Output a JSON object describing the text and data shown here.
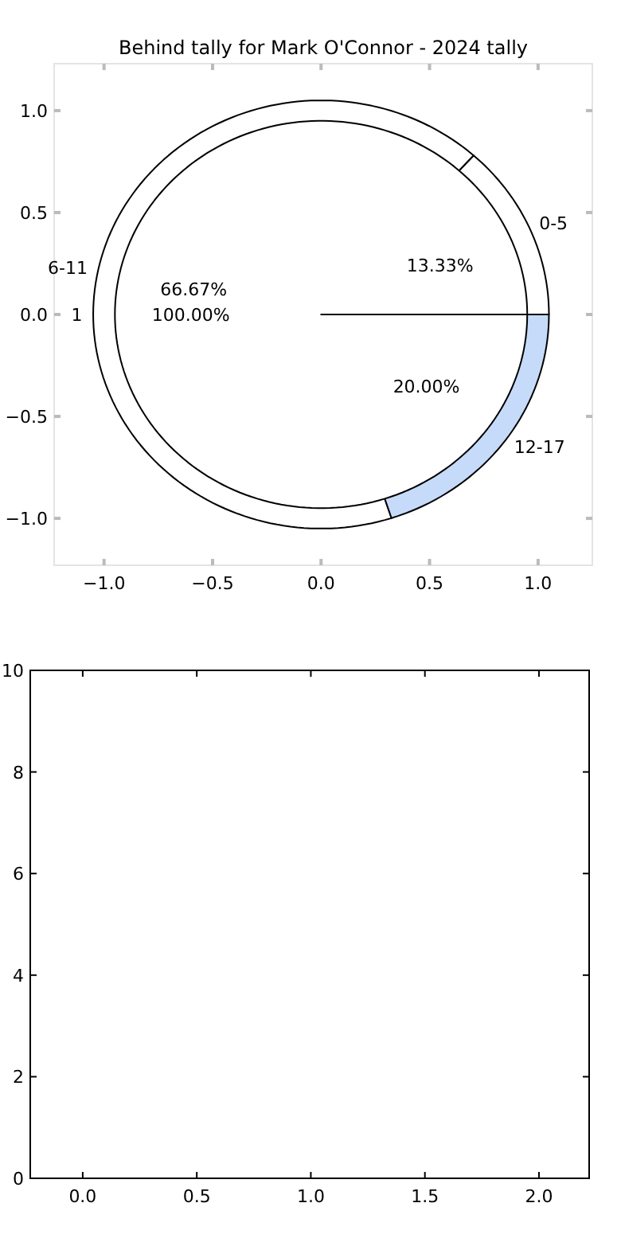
{
  "chart_data": [
    {
      "type": "scatter",
      "title": "Behind tally for Mark O'Connor - 2024 tally",
      "xlim": [
        -1.23,
        1.25
      ],
      "ylim": [
        -1.23,
        1.23
      ],
      "xticks": [
        {
          "value": -1,
          "label": "−1.0"
        },
        {
          "value": -0.5,
          "label": "−0.5"
        },
        {
          "value": 0,
          "label": "0.0"
        },
        {
          "value": 0.5,
          "label": "0.5"
        },
        {
          "value": 1,
          "label": "1.0"
        }
      ],
      "yticks": [
        {
          "value": -1,
          "label": "−1.0"
        },
        {
          "value": -0.5,
          "label": "−0.5"
        },
        {
          "value": 0,
          "label": "0.0"
        },
        {
          "value": 0.5,
          "label": "0.5"
        },
        {
          "value": 1,
          "label": "1.0"
        }
      ],
      "grid": false
    },
    {
      "type": "pie",
      "categories": [
        "0-5",
        "6-11",
        "12-17"
      ],
      "values": [
        13.33,
        66.67,
        20
      ],
      "value_labels": [
        "13.33%",
        "66.67%",
        "20.00%"
      ],
      "colors": [
        "#ffffff",
        "#ffffff",
        "#c6dbf9"
      ]
    },
    {
      "type": "pie",
      "categories": [
        "1"
      ],
      "values": [
        100
      ],
      "value_labels": [
        "100.00%"
      ],
      "colors": [
        "#ffffff"
      ]
    },
    {
      "type": "scatter",
      "xlim": [
        -0.23,
        2.22
      ],
      "ylim": [
        0,
        10
      ],
      "xticks": [
        {
          "value": 0,
          "label": "0.0"
        },
        {
          "value": 0.5,
          "label": "0.5"
        },
        {
          "value": 1,
          "label": "1.0"
        },
        {
          "value": 1.5,
          "label": "1.5"
        },
        {
          "value": 2,
          "label": "2.0"
        }
      ],
      "yticks": [
        0,
        2,
        4,
        6,
        8,
        10
      ],
      "grid": false
    }
  ]
}
